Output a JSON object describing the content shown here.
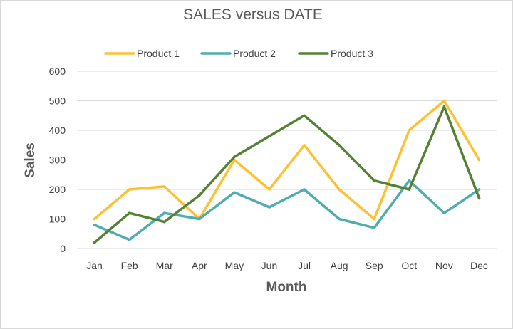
{
  "chart_data": {
    "type": "line",
    "title": "SALES versus DATE",
    "xlabel": "Month",
    "ylabel": "Sales",
    "ylim": [
      0,
      600
    ],
    "yticks": [
      "0",
      "100",
      "200",
      "300",
      "400",
      "500",
      "600"
    ],
    "grid": "horizontal",
    "legend_position": "top",
    "categories": [
      "Jan",
      "Feb",
      "Mar",
      "Apr",
      "May",
      "Jun",
      "Jul",
      "Aug",
      "Sep",
      "Oct",
      "Nov",
      "Dec"
    ],
    "series": [
      {
        "name": "Product 1",
        "color": "#FFC133",
        "values": [
          100,
          200,
          210,
          100,
          300,
          200,
          350,
          200,
          100,
          400,
          500,
          300
        ]
      },
      {
        "name": "Product 2",
        "color": "#4FADB0",
        "values": [
          80,
          30,
          120,
          100,
          190,
          140,
          200,
          100,
          70,
          230,
          120,
          200
        ]
      },
      {
        "name": "Product 3",
        "color": "#548235",
        "values": [
          20,
          120,
          90,
          180,
          310,
          380,
          450,
          350,
          230,
          200,
          480,
          170
        ]
      }
    ]
  }
}
